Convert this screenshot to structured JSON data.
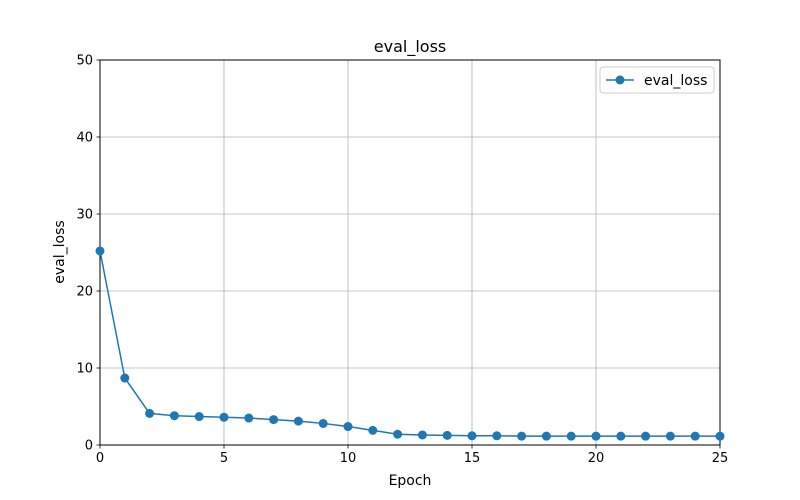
{
  "chart_data": {
    "type": "line",
    "title": "eval_loss",
    "xlabel": "Epoch",
    "ylabel": "eval_loss",
    "xlim": [
      0,
      25
    ],
    "ylim": [
      0,
      50
    ],
    "x_ticks": [
      0,
      5,
      10,
      15,
      20,
      25
    ],
    "y_ticks": [
      0,
      10,
      20,
      30,
      40,
      50
    ],
    "grid": true,
    "legend_position": "upper right",
    "series": [
      {
        "name": "eval_loss",
        "color": "#1f77b4",
        "marker": "circle",
        "x": [
          0,
          1,
          2,
          3,
          4,
          5,
          6,
          7,
          8,
          9,
          10,
          11,
          12,
          13,
          14,
          15,
          16,
          17,
          18,
          19,
          20,
          21,
          22,
          23,
          24,
          25
        ],
        "y": [
          25.2,
          8.7,
          4.1,
          3.8,
          3.7,
          3.6,
          3.5,
          3.3,
          3.1,
          2.8,
          2.4,
          1.9,
          1.4,
          1.3,
          1.25,
          1.2,
          1.2,
          1.15,
          1.15,
          1.15,
          1.15,
          1.15,
          1.15,
          1.15,
          1.15,
          1.15
        ]
      }
    ]
  }
}
